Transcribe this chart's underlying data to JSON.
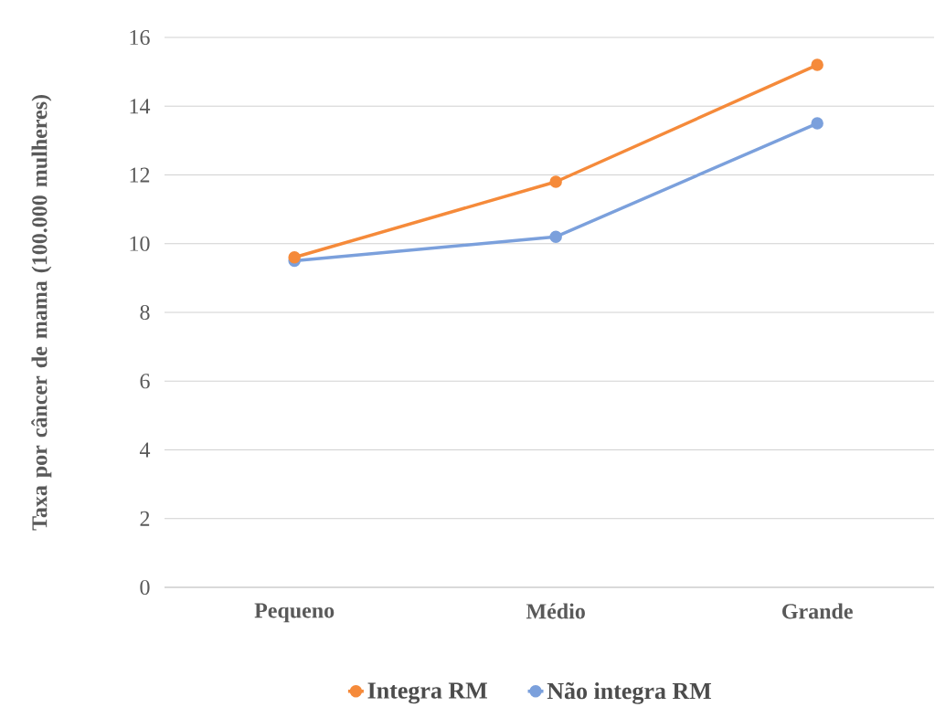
{
  "chart_data": {
    "type": "line",
    "ylabel": "Taxa por câncer de mama (100.000 mulheres)",
    "categories": [
      "Pequeno",
      "Médio",
      "Grande"
    ],
    "series": [
      {
        "name": "Integra RM",
        "color": "#f58a3a",
        "values": [
          9.6,
          11.8,
          15.2
        ]
      },
      {
        "name": "Não integra RM",
        "color": "#7ba0dc",
        "values": [
          9.5,
          10.2,
          13.5
        ]
      }
    ],
    "ylim": [
      0,
      16
    ],
    "yticks": [
      0,
      2,
      4,
      6,
      8,
      10,
      12,
      14,
      16
    ],
    "grid": "y",
    "legend": "bottom",
    "marker": "circle",
    "line_style": "solid"
  }
}
